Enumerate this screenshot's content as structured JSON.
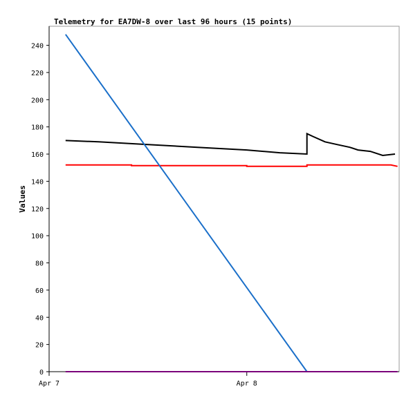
{
  "chart_data": {
    "type": "line",
    "title": "Telemetry for EA7DW-8 over last 96 hours (15 points)",
    "xlabel": "",
    "ylabel": "Values",
    "ylim": [
      0,
      254
    ],
    "y_ticks": [
      0,
      20,
      40,
      60,
      80,
      100,
      120,
      140,
      160,
      180,
      200,
      220,
      240
    ],
    "x_ticks": [
      "Apr 7",
      "Apr 8"
    ],
    "x_tick_positions_hours": [
      0,
      24
    ],
    "xlim_hours": [
      0,
      42.5
    ],
    "grid": false,
    "series": [
      {
        "color": "#000000",
        "points": [
          [
            2.0,
            170
          ],
          [
            6.0,
            169
          ],
          [
            12.0,
            167
          ],
          [
            18.0,
            165
          ],
          [
            24.0,
            163
          ],
          [
            28.0,
            161
          ],
          [
            31.3,
            160
          ],
          [
            31.3,
            175
          ],
          [
            32.0,
            173
          ],
          [
            33.5,
            169
          ],
          [
            35.0,
            167
          ],
          [
            36.5,
            165
          ],
          [
            37.5,
            163
          ],
          [
            39.0,
            162
          ],
          [
            40.5,
            159
          ],
          [
            42.0,
            160
          ]
        ]
      },
      {
        "color": "#ff0000",
        "points": [
          [
            2.0,
            152
          ],
          [
            10.0,
            152
          ],
          [
            10.0,
            151.5
          ],
          [
            24.0,
            151.5
          ],
          [
            24.0,
            151
          ],
          [
            31.3,
            151
          ],
          [
            31.3,
            152
          ],
          [
            41.5,
            152
          ],
          [
            42.3,
            151
          ]
        ]
      },
      {
        "color": "#1a6fc9",
        "points": [
          [
            2.0,
            248
          ],
          [
            31.3,
            0
          ]
        ]
      },
      {
        "color": "#7a007a",
        "points": [
          [
            2.0,
            0
          ],
          [
            42.3,
            0
          ]
        ]
      }
    ]
  }
}
